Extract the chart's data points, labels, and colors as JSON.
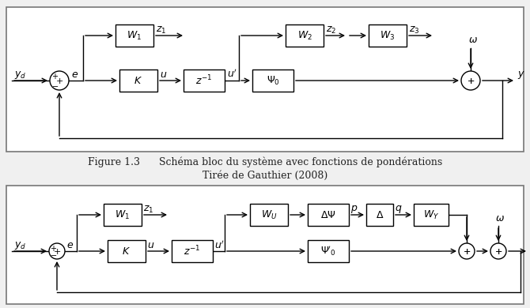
{
  "fig_width": 6.7,
  "fig_height": 3.9,
  "dpi": 100,
  "bg_color": "#f0f0f0",
  "box_color": "#ffffff",
  "box_edge_color": "#000000",
  "line_color": "#000000",
  "caption_line1": "Figure 1.3      Schéma bloc du système avec fonctions de pondérations",
  "caption_line2": "Tirée de Gauthier (2008)"
}
